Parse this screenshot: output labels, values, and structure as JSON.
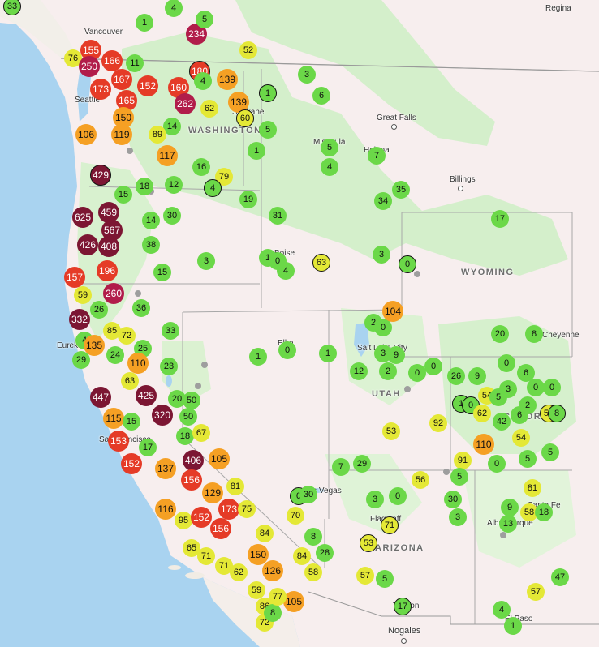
{
  "states": [
    "WASHINGTON",
    "WYOMING",
    "UTAH",
    "COLORADO",
    "ARIZONA"
  ],
  "state_labels": [
    "WASHINGTON",
    "WYOMING",
    "UTAH",
    "COLORADO",
    "ARIZONA"
  ],
  "places": [
    "Regina",
    "Vancouver",
    "Seattle",
    "Spokane",
    "Missoula",
    "Great Falls",
    "Helena",
    "Billings",
    "Boise",
    "Cheyenne",
    "Eureka",
    "Elko",
    "Salt Lake City",
    "San Francisco",
    "Las Vegas",
    "Flagstaff",
    "Albuquerque",
    "Santa Fe",
    "Tucson",
    "El Paso",
    "Nogales"
  ],
  "colors": {
    "good": "#6bd848",
    "moderate": "#e4e836",
    "usg": "#f5a024",
    "unhealthy": "#e53b27",
    "very_unhealthy": "#b11c4a",
    "hazardous": "#7c1633",
    "water": "#a9d3f0",
    "land": "#fbeeee",
    "forest": "#d8f0d0"
  },
  "sensor_values": [
    "33",
    "4",
    "234",
    "5",
    "76",
    "155",
    "166",
    "250",
    "11",
    "52",
    "180",
    "3",
    "167",
    "152",
    "160",
    "139",
    "1",
    "4",
    "173",
    "165",
    "262",
    "62",
    "6",
    "150",
    "139",
    "60",
    "5",
    "14",
    "106",
    "119",
    "89",
    "117",
    "1",
    "5",
    "7",
    "4",
    "429",
    "16",
    "79",
    "18",
    "12",
    "15",
    "4",
    "625",
    "459",
    "567",
    "14",
    "30",
    "19",
    "31",
    "34",
    "35",
    "426",
    "408",
    "38",
    "196",
    "3",
    "1",
    "0",
    "4",
    "63",
    "3",
    "0",
    "17",
    "15",
    "157",
    "260",
    "59",
    "26",
    "36",
    "332",
    "85",
    "72",
    "4",
    "33",
    "135",
    "24",
    "25",
    "29",
    "110",
    "23",
    "63",
    "447",
    "425",
    "20",
    "50",
    "115",
    "320",
    "50",
    "15",
    "18",
    "67",
    "153",
    "17",
    "152",
    "137",
    "406",
    "105",
    "116",
    "156",
    "129",
    "81",
    "95",
    "152",
    "173",
    "75",
    "65",
    "71",
    "156",
    "84",
    "71",
    "62",
    "150",
    "126",
    "59",
    "86",
    "105",
    "72",
    "1",
    "1",
    "0",
    "1",
    "2",
    "0",
    "104",
    "3",
    "9",
    "12",
    "2",
    "0",
    "0",
    "26",
    "9",
    "1",
    "0",
    "20",
    "8",
    "54",
    "5",
    "0",
    "6",
    "3",
    "0",
    "0",
    "2",
    "51",
    "8",
    "62",
    "42",
    "6",
    "53",
    "92",
    "54",
    "110",
    "91",
    "0",
    "5",
    "5",
    "7",
    "29",
    "56",
    "5",
    "3",
    "0",
    "0",
    "30",
    "70",
    "81",
    "30",
    "3",
    "9",
    "58",
    "18",
    "13",
    "8",
    "71",
    "28",
    "53",
    "84",
    "58",
    "57",
    "5",
    "17",
    "57",
    "47",
    "4",
    "1",
    "8",
    "77"
  ]
}
